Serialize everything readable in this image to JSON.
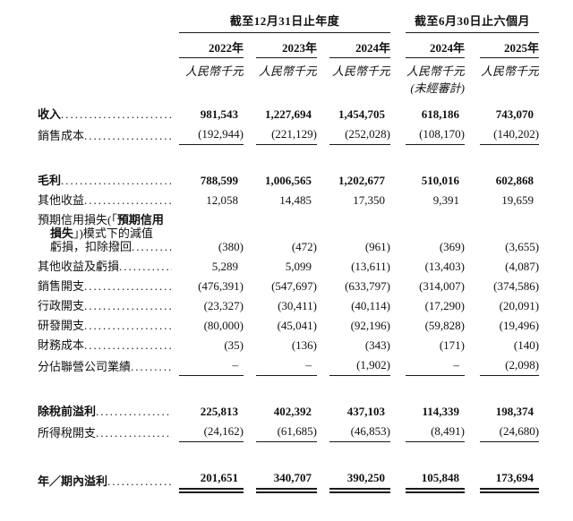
{
  "table": {
    "header": {
      "group_annual": {
        "title": "截至12月31日止年度",
        "years": [
          "2022年",
          "2023年",
          "2024年"
        ]
      },
      "group_interim": {
        "title": "截至6月30日止六個月",
        "years": [
          "2024年",
          "2025年"
        ]
      },
      "unit": "人民幣千元",
      "unaudited": "(未經審計)"
    },
    "rows": [
      {
        "name": "revenue",
        "label": "收入",
        "bold": true,
        "values": [
          "981,543",
          "1,227,694",
          "1,454,705",
          "618,186",
          "743,070"
        ]
      },
      {
        "name": "cost-of-sales",
        "label": "銷售成本",
        "underline": "single",
        "values": [
          "(192,944)",
          "(221,129)",
          "(252,028)",
          "(108,170)",
          "(140,202)"
        ]
      },
      {
        "name": "spacer"
      },
      {
        "name": "gross-profit",
        "label": "毛利",
        "bold": true,
        "values": [
          "788,599",
          "1,006,565",
          "1,202,677",
          "510,016",
          "602,868"
        ]
      },
      {
        "name": "other-income",
        "label": "其他收益",
        "values": [
          "12,058",
          "14,485",
          "17,350",
          "9,391",
          "19,659"
        ]
      },
      {
        "name": "ecl-impairment",
        "label_lines": [
          [
            {
              "t": "預期信用損失(「",
              "b": false
            },
            {
              "t": "預期信用",
              "b": true
            }
          ],
          [
            {
              "t": "損失",
              "b": true
            },
            {
              "t": "」)模式下的減值",
              "b": false
            }
          ],
          [
            {
              "t": "虧損，扣除撥回",
              "b": false
            }
          ]
        ],
        "values": [
          "(380)",
          "(472)",
          "(961)",
          "(369)",
          "(3,655)"
        ]
      },
      {
        "name": "other-gains-losses",
        "label": "其他收益及虧損",
        "values": [
          "5,289",
          "5,099",
          "(13,611)",
          "(13,403)",
          "(4,087)"
        ]
      },
      {
        "name": "selling-expenses",
        "label": "銷售開支",
        "values": [
          "(476,391)",
          "(547,697)",
          "(633,797)",
          "(314,007)",
          "(374,586)"
        ]
      },
      {
        "name": "admin-expenses",
        "label": "行政開支",
        "values": [
          "(23,327)",
          "(30,411)",
          "(40,114)",
          "(17,290)",
          "(20,091)"
        ]
      },
      {
        "name": "rd-expenses",
        "label": "研發開支",
        "values": [
          "(80,000)",
          "(45,041)",
          "(92,196)",
          "(59,828)",
          "(19,496)"
        ]
      },
      {
        "name": "finance-costs",
        "label": "財務成本",
        "values": [
          "(35)",
          "(136)",
          "(343)",
          "(171)",
          "(140)"
        ]
      },
      {
        "name": "share-of-associates",
        "label": "分佔聯營公司業績",
        "underline": "single",
        "values": [
          "–",
          "–",
          "(1,902)",
          "–",
          "(2,098)"
        ]
      },
      {
        "name": "spacer"
      },
      {
        "name": "profit-before-tax",
        "label": "除稅前溢利",
        "bold": true,
        "values": [
          "225,813",
          "402,392",
          "437,103",
          "114,339",
          "198,374"
        ]
      },
      {
        "name": "income-tax-expense",
        "label": "所得稅開支",
        "underline": "single",
        "values": [
          "(24,162)",
          "(61,685)",
          "(46,853)",
          "(8,491)",
          "(24,680)"
        ]
      },
      {
        "name": "spacer"
      },
      {
        "name": "profit-for-year-period",
        "label": "年／期內溢利",
        "bold": true,
        "underline": "double",
        "values": [
          "201,651",
          "340,707",
          "390,250",
          "105,848",
          "173,694"
        ]
      }
    ]
  },
  "colors": {
    "text": "#111111",
    "rule": "#1a1a1a",
    "background": "#ffffff"
  }
}
